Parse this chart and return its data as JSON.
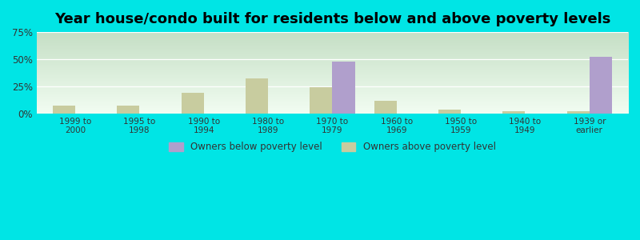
{
  "title": "Year house/condo built for residents below and above poverty levels",
  "categories": [
    "1999 to\n2000",
    "1995 to\n1998",
    "1990 to\n1994",
    "1980 to\n1989",
    "1970 to\n1979",
    "1960 to\n1969",
    "1950 to\n1959",
    "1940 to\n1949",
    "1939 or\nearlier"
  ],
  "below_poverty": [
    0.0,
    0.0,
    0.0,
    0.0,
    47.5,
    0.0,
    0.0,
    0.0,
    52.5
  ],
  "above_poverty": [
    7.0,
    7.5,
    19.0,
    32.0,
    24.5,
    11.5,
    3.5,
    2.0,
    2.5
  ],
  "below_color": "#b09fcc",
  "above_color": "#c8cc9f",
  "ylim": [
    0,
    75
  ],
  "yticks": [
    0,
    25,
    50,
    75
  ],
  "ytick_labels": [
    "0%",
    "25%",
    "50%",
    "75%"
  ],
  "outer_background": "#00e5e5",
  "grad_top": "#c5dfc5",
  "grad_bot": "#f2fdf2",
  "bar_width": 0.35,
  "title_fontsize": 13,
  "legend_below_label": "Owners below poverty level",
  "legend_above_label": "Owners above poverty level"
}
